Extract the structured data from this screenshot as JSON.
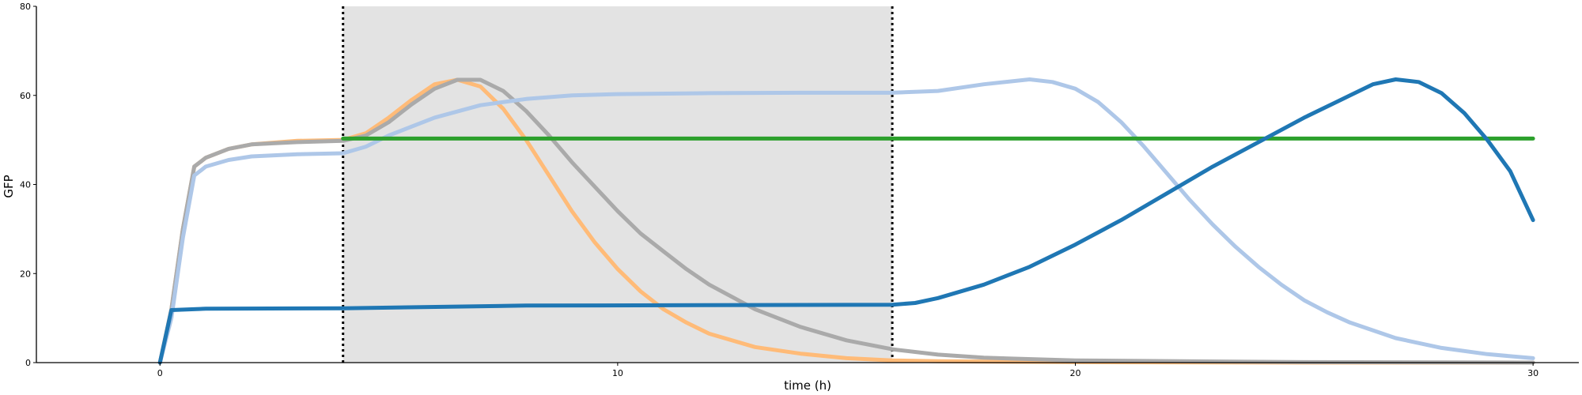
{
  "chart_data": {
    "type": "line",
    "title": "",
    "xlabel": "time (h)",
    "ylabel": "GFP",
    "xlim": [
      -2.7,
      31
    ],
    "ylim": [
      0,
      80
    ],
    "xticks": [
      0,
      10,
      20,
      30
    ],
    "yticks": [
      0,
      20,
      40,
      60,
      80
    ],
    "grid": false,
    "legend": "none",
    "shaded_region": {
      "x": [
        4,
        16
      ],
      "color": "#e3e3e3"
    },
    "markers": [
      4,
      16
    ],
    "series": [
      {
        "color": "#ffbb78",
        "points": [
          [
            0,
            0
          ],
          [
            0.25,
            12
          ],
          [
            0.5,
            30
          ],
          [
            0.75,
            44
          ],
          [
            1,
            46
          ],
          [
            1.5,
            48
          ],
          [
            2,
            49
          ],
          [
            3,
            49.8
          ],
          [
            4,
            50
          ],
          [
            4.5,
            51.5
          ],
          [
            5,
            55
          ],
          [
            5.5,
            59
          ],
          [
            6,
            62.5
          ],
          [
            6.5,
            63.5
          ],
          [
            7,
            62
          ],
          [
            7.5,
            57
          ],
          [
            8,
            50
          ],
          [
            8.5,
            42
          ],
          [
            9,
            34
          ],
          [
            9.5,
            27
          ],
          [
            10,
            21
          ],
          [
            10.5,
            16
          ],
          [
            11,
            12
          ],
          [
            11.5,
            9
          ],
          [
            12,
            6.5
          ],
          [
            13,
            3.5
          ],
          [
            14,
            2
          ],
          [
            15,
            1
          ],
          [
            16,
            0.5
          ],
          [
            17,
            0.3
          ],
          [
            20,
            0.1
          ],
          [
            25,
            0
          ],
          [
            30,
            0
          ]
        ]
      },
      {
        "color": "#aaaaaa",
        "points": [
          [
            0,
            0
          ],
          [
            0.25,
            12
          ],
          [
            0.5,
            30
          ],
          [
            0.75,
            44
          ],
          [
            1,
            46
          ],
          [
            1.5,
            48
          ],
          [
            2,
            49
          ],
          [
            3,
            49.5
          ],
          [
            4,
            49.8
          ],
          [
            4.5,
            51
          ],
          [
            5,
            54
          ],
          [
            5.5,
            58
          ],
          [
            6,
            61.5
          ],
          [
            6.5,
            63.5
          ],
          [
            7,
            63.5
          ],
          [
            7.5,
            61
          ],
          [
            8,
            56.5
          ],
          [
            8.5,
            51
          ],
          [
            9,
            45
          ],
          [
            9.5,
            39.5
          ],
          [
            10,
            34
          ],
          [
            10.5,
            29
          ],
          [
            11,
            25
          ],
          [
            11.5,
            21
          ],
          [
            12,
            17.5
          ],
          [
            13,
            12
          ],
          [
            14,
            8
          ],
          [
            15,
            5
          ],
          [
            16,
            3
          ],
          [
            17,
            1.8
          ],
          [
            18,
            1.1
          ],
          [
            20,
            0.5
          ],
          [
            25,
            0.1
          ],
          [
            30,
            0
          ]
        ]
      },
      {
        "color": "#aec7e8",
        "points": [
          [
            0,
            0
          ],
          [
            0.25,
            10
          ],
          [
            0.5,
            28
          ],
          [
            0.75,
            42
          ],
          [
            1,
            44
          ],
          [
            1.5,
            45.5
          ],
          [
            2,
            46.3
          ],
          [
            3,
            46.8
          ],
          [
            4,
            47
          ],
          [
            4.5,
            48.5
          ],
          [
            5,
            51
          ],
          [
            6,
            55
          ],
          [
            7,
            57.8
          ],
          [
            8,
            59.2
          ],
          [
            9,
            60
          ],
          [
            10,
            60.3
          ],
          [
            12,
            60.5
          ],
          [
            14,
            60.6
          ],
          [
            16,
            60.6
          ],
          [
            17,
            61
          ],
          [
            18,
            62.5
          ],
          [
            19,
            63.6
          ],
          [
            19.5,
            63
          ],
          [
            20,
            61.5
          ],
          [
            20.5,
            58.5
          ],
          [
            21,
            54
          ],
          [
            21.5,
            48.5
          ],
          [
            22,
            42.5
          ],
          [
            22.5,
            36.5
          ],
          [
            23,
            31
          ],
          [
            23.5,
            26
          ],
          [
            24,
            21.5
          ],
          [
            24.5,
            17.5
          ],
          [
            25,
            14
          ],
          [
            25.5,
            11.3
          ],
          [
            26,
            9
          ],
          [
            27,
            5.5
          ],
          [
            28,
            3.3
          ],
          [
            29,
            1.9
          ],
          [
            30,
            1
          ]
        ]
      },
      {
        "color": "#2ca02c",
        "points": [
          [
            4,
            50.3
          ],
          [
            30,
            50.3
          ]
        ]
      },
      {
        "color": "#1f77b4",
        "points": [
          [
            0,
            0
          ],
          [
            0.25,
            11.8
          ],
          [
            1,
            12.1
          ],
          [
            4,
            12.2
          ],
          [
            8,
            12.8
          ],
          [
            16,
            13
          ],
          [
            16.5,
            13.4
          ],
          [
            17,
            14.5
          ],
          [
            18,
            17.5
          ],
          [
            19,
            21.5
          ],
          [
            20,
            26.5
          ],
          [
            21,
            32
          ],
          [
            22,
            38
          ],
          [
            23,
            44
          ],
          [
            24,
            49.5
          ],
          [
            25,
            55
          ],
          [
            26,
            60
          ],
          [
            26.5,
            62.5
          ],
          [
            27,
            63.6
          ],
          [
            27.5,
            63
          ],
          [
            28,
            60.5
          ],
          [
            28.5,
            56
          ],
          [
            29,
            50
          ],
          [
            29.5,
            43
          ],
          [
            30,
            32
          ]
        ]
      }
    ]
  }
}
